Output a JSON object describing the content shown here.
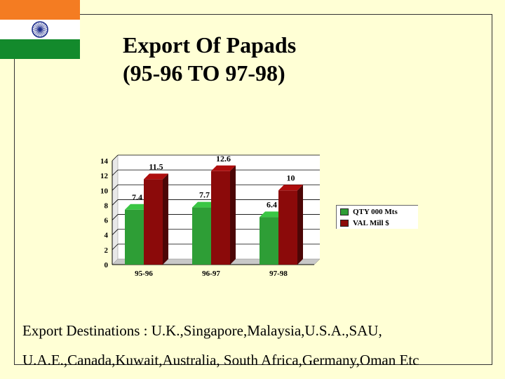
{
  "title": {
    "line1": "Export Of Papads",
    "line2": "(95-96 TO 97-98)"
  },
  "flag": {
    "saffron": "#F47C22",
    "white": "#FFFFFF",
    "green": "#138A2C",
    "chakra": "#1A2A8A",
    "icon": "ashoka-chakra-icon"
  },
  "chart_data": {
    "type": "bar",
    "categories": [
      "95-96",
      "96-97",
      "97-98"
    ],
    "series": [
      {
        "name": "QTY 000 Mts",
        "values": [
          7.4,
          7.7,
          6.4
        ],
        "color": "#2E9E36"
      },
      {
        "name": "VAL Mill $",
        "values": [
          11.5,
          12.6,
          10
        ],
        "color": "#8B0A0A"
      }
    ],
    "ylim": [
      0,
      14
    ],
    "yticks": [
      0,
      2,
      4,
      6,
      8,
      10,
      12,
      14
    ],
    "grid": true,
    "legend_position": "right"
  },
  "footer": {
    "line1": "Export Destinations : U.K.,Singapore,Malaysia,U.S.A.,SAU,",
    "line2": "U.A.E.,Canada,Kuwait,Australia, South Africa,Germany,Oman Etc"
  }
}
